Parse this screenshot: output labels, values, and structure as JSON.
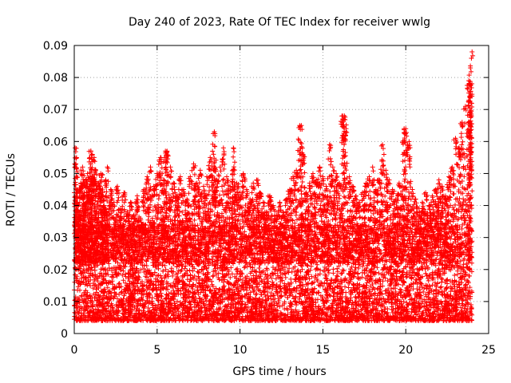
{
  "chart_data": {
    "type": "scatter",
    "title": "Day 240 of 2023, Rate Of TEC Index for receiver wwlg",
    "xlabel": "GPS time / hours",
    "ylabel": "ROTI / TECUs",
    "xlim": [
      0,
      25
    ],
    "ylim": [
      0,
      0.09
    ],
    "x_ticks": [
      0,
      5,
      10,
      15,
      20,
      25
    ],
    "x_tick_labels": [
      "0",
      "5",
      "10",
      "15",
      "20",
      "25"
    ],
    "y_ticks": [
      0,
      0.01,
      0.02,
      0.03,
      0.04,
      0.05,
      0.06,
      0.07,
      0.08,
      0.09
    ],
    "y_tick_labels": [
      "0",
      "0.01",
      "0.02",
      "0.03",
      "0.04",
      "0.05",
      "0.06",
      "0.07",
      "0.08",
      "0.09"
    ],
    "grid": true,
    "marker": "+",
    "marker_color": "#ff0000",
    "series": [
      {
        "name": "ROTI",
        "color": "#ff0000",
        "x": [
          0.05,
          0.1,
          0.15,
          0.2,
          0.3,
          0.4,
          0.5,
          0.6,
          0.7,
          0.8,
          0.9,
          1.0,
          1.1,
          1.2,
          1.3,
          1.4,
          1.5,
          1.6,
          1.7,
          1.8,
          1.9,
          2.0,
          2.2,
          2.4,
          2.6,
          2.8,
          3.0,
          3.2,
          3.4,
          3.6,
          3.8,
          4.0,
          4.2,
          4.4,
          4.6,
          4.8,
          5.0,
          5.2,
          5.4,
          5.6,
          5.8,
          6.0,
          6.2,
          6.4,
          6.6,
          6.8,
          7.0,
          7.2,
          7.4,
          7.6,
          7.8,
          8.0,
          8.2,
          8.4,
          8.6,
          8.8,
          9.0,
          9.2,
          9.4,
          9.6,
          9.8,
          10.0,
          10.2,
          10.4,
          10.6,
          10.8,
          11.0,
          11.2,
          11.4,
          11.6,
          11.8,
          12.0,
          12.2,
          12.4,
          12.6,
          12.8,
          13.0,
          13.2,
          13.4,
          13.6,
          13.8,
          14.0,
          14.2,
          14.4,
          14.6,
          14.8,
          15.0,
          15.2,
          15.4,
          15.6,
          15.8,
          16.0,
          16.2,
          16.4,
          16.6,
          16.8,
          17.0,
          17.2,
          17.4,
          17.6,
          17.8,
          18.0,
          18.2,
          18.4,
          18.6,
          18.8,
          19.0,
          19.2,
          19.4,
          19.6,
          19.8,
          20.0,
          20.2,
          20.4,
          20.6,
          20.8,
          21.0,
          21.2,
          21.4,
          21.6,
          21.8,
          22.0,
          22.2,
          22.4,
          22.6,
          22.8,
          23.0,
          23.2,
          23.4,
          23.6,
          23.8,
          23.9,
          24.0,
          8.45,
          13.7,
          16.3,
          19.9,
          23.95,
          23.9,
          23.85,
          1.0,
          9.6,
          5.5
        ],
        "y": [
          0.058,
          0.053,
          0.045,
          0.041,
          0.038,
          0.047,
          0.052,
          0.044,
          0.048,
          0.05,
          0.046,
          0.057,
          0.049,
          0.055,
          0.051,
          0.047,
          0.046,
          0.05,
          0.044,
          0.04,
          0.048,
          0.052,
          0.045,
          0.041,
          0.046,
          0.039,
          0.044,
          0.038,
          0.041,
          0.037,
          0.043,
          0.036,
          0.045,
          0.049,
          0.052,
          0.046,
          0.05,
          0.055,
          0.048,
          0.057,
          0.052,
          0.047,
          0.043,
          0.049,
          0.045,
          0.042,
          0.049,
          0.053,
          0.047,
          0.051,
          0.046,
          0.049,
          0.055,
          0.056,
          0.048,
          0.052,
          0.058,
          0.049,
          0.046,
          0.051,
          0.047,
          0.044,
          0.05,
          0.045,
          0.042,
          0.047,
          0.048,
          0.044,
          0.041,
          0.038,
          0.043,
          0.04,
          0.037,
          0.041,
          0.038,
          0.042,
          0.045,
          0.049,
          0.051,
          0.065,
          0.056,
          0.044,
          0.047,
          0.05,
          0.048,
          0.052,
          0.049,
          0.046,
          0.059,
          0.052,
          0.05,
          0.047,
          0.068,
          0.064,
          0.049,
          0.046,
          0.043,
          0.041,
          0.044,
          0.047,
          0.049,
          0.052,
          0.045,
          0.048,
          0.059,
          0.051,
          0.048,
          0.045,
          0.042,
          0.047,
          0.043,
          0.064,
          0.06,
          0.045,
          0.042,
          0.039,
          0.041,
          0.044,
          0.04,
          0.043,
          0.045,
          0.048,
          0.046,
          0.043,
          0.049,
          0.052,
          0.061,
          0.058,
          0.066,
          0.071,
          0.079,
          0.083,
          0.088,
          0.063,
          0.065,
          0.068,
          0.064,
          0.072,
          0.078,
          0.066,
          0.057,
          0.058,
          0.057
        ],
        "baseline_band": {
          "min": 0.004,
          "max": 0.022,
          "note": "dense cloud of points across 0-24 h"
        }
      }
    ]
  }
}
